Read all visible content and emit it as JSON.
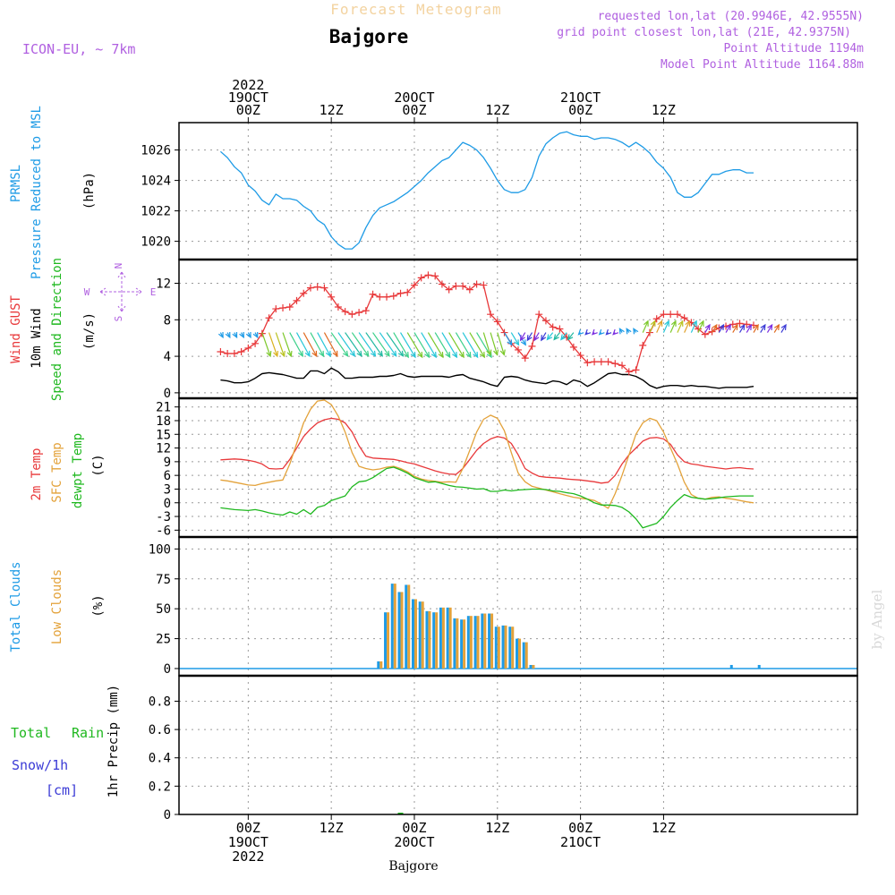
{
  "header": {
    "title": "Forecast Meteogram",
    "location": "Bajgore",
    "model": "ICON-EU, ~ 7km",
    "requested": "requested lon,lat (20.9946E, 42.9555N)",
    "grid_point": "grid point closest lon,lat (21E, 42.9375N)",
    "point_altitude": "Point Altitude 1194m",
    "model_altitude": "Model Point Altitude 1164.88m",
    "watermark": "by Angel",
    "footer_location": "Bajgore"
  },
  "time_axis": {
    "hours_range": [
      -10,
      88
    ],
    "top_labels": [
      {
        "h": 0,
        "lines": [
          "2022",
          "19OCT",
          "00Z"
        ]
      },
      {
        "h": 12,
        "lines": [
          "12Z"
        ]
      },
      {
        "h": 24,
        "lines": [
          "20OCT",
          "00Z"
        ]
      },
      {
        "h": 36,
        "lines": [
          "12Z"
        ]
      },
      {
        "h": 48,
        "lines": [
          "21OCT",
          "00Z"
        ]
      },
      {
        "h": 60,
        "lines": [
          "12Z"
        ]
      }
    ],
    "bottom_labels": [
      {
        "h": 0,
        "lines": [
          "00Z",
          "19OCT",
          "2022"
        ]
      },
      {
        "h": 12,
        "lines": [
          "12Z"
        ]
      },
      {
        "h": 24,
        "lines": [
          "00Z",
          "20OCT"
        ]
      },
      {
        "h": 36,
        "lines": [
          "12Z"
        ]
      },
      {
        "h": 48,
        "lines": [
          "00Z",
          "21OCT"
        ]
      },
      {
        "h": 60,
        "lines": [
          "12Z"
        ]
      }
    ]
  },
  "panels": {
    "pressure": {
      "labels": [
        {
          "text": "PRMSL",
          "color": "#1e9be6"
        },
        {
          "text": "Pressure Reduced to MSL",
          "color": "#1e9be6"
        },
        {
          "text": "(hPa)",
          "color": "#000000"
        }
      ]
    },
    "wind": {
      "labels": [
        {
          "text": "Wind GUST",
          "color": "#e8383a"
        },
        {
          "text": "10m Wind",
          "color": "#000000"
        },
        {
          "text": "Speed and Direction",
          "color": "#1fb81f"
        },
        {
          "text": "(m/s)",
          "color": "#000000"
        }
      ],
      "compass": {
        "n": "N",
        "s": "S",
        "w": "W",
        "e": "E",
        "color": "#b060e0"
      }
    },
    "temp": {
      "labels": [
        {
          "text": "2m Temp",
          "color": "#e8383a"
        },
        {
          "text": "SFC Temp",
          "color": "#e3a23a"
        },
        {
          "text": "dewpt Temp",
          "color": "#1fb81f"
        },
        {
          "text": "(C)",
          "color": "#000000"
        }
      ]
    },
    "clouds": {
      "labels": [
        {
          "text": "Total Clouds",
          "color": "#1e9be6"
        },
        {
          "text": "Low Clouds",
          "color": "#e3a23a"
        },
        {
          "text": "(%)",
          "color": "#000000"
        }
      ]
    },
    "precip": {
      "labels": [
        {
          "text": "Total",
          "color": "#1fb81f"
        },
        {
          "text": "Rain",
          "color": "#1fb81f"
        },
        {
          "text": "Snow/1h",
          "color": "#3b3bd6"
        },
        {
          "text": "[cm]",
          "color": "#3b3bd6"
        },
        {
          "text": "1hr Precip (mm)",
          "color": "#000000"
        }
      ]
    }
  },
  "chart_data": [
    {
      "type": "line",
      "name": "pressure",
      "ylabel": "(hPa)",
      "ylim": [
        1018.8,
        1027.8
      ],
      "yticks": [
        1020,
        1022,
        1024,
        1026
      ],
      "x_hours": [
        -4,
        -3,
        -2,
        -1,
        0,
        1,
        2,
        3,
        4,
        5,
        6,
        7,
        8,
        9,
        10,
        11,
        12,
        13,
        14,
        15,
        16,
        17,
        18,
        19,
        20,
        21,
        22,
        23,
        24,
        25,
        26,
        27,
        28,
        29,
        30,
        31,
        32,
        33,
        34,
        35,
        36,
        37,
        38,
        39,
        40,
        41,
        42,
        43,
        44,
        45,
        46,
        47,
        48,
        49,
        50,
        51,
        52,
        53,
        54,
        55,
        56,
        57,
        58,
        59,
        60,
        61,
        62,
        63,
        64,
        65,
        66,
        67,
        68,
        69,
        70,
        71,
        72,
        73,
        74,
        75,
        76,
        77
      ],
      "series": [
        {
          "color": "#1e9be6",
          "values": [
            1025.9,
            1025.5,
            1024.9,
            1024.5,
            1023.7,
            1023.3,
            1022.7,
            1022.4,
            1023.1,
            1022.8,
            1022.8,
            1022.7,
            1022.3,
            1022.0,
            1021.4,
            1021.1,
            1020.3,
            1019.8,
            1019.5,
            1019.5,
            1019.9,
            1020.9,
            1021.7,
            1022.2,
            1022.4,
            1022.6,
            1022.9,
            1023.2,
            1023.6,
            1024.0,
            1024.5,
            1024.9,
            1025.3,
            1025.5,
            1026.0,
            1026.5,
            1026.3,
            1026.0,
            1025.5,
            1024.8,
            1024.0,
            1023.4,
            1023.2,
            1023.2,
            1023.4,
            1024.2,
            1025.6,
            1026.4,
            1026.8,
            1027.1,
            1027.2,
            1027.0,
            1026.9,
            1026.9,
            1026.7,
            1026.8,
            1026.8,
            1026.7,
            1026.5,
            1026.2,
            1026.5,
            1026.2,
            1025.8,
            1025.2,
            1024.8,
            1024.2,
            1023.2,
            1022.9,
            1022.9,
            1023.2,
            1023.8,
            1024.4,
            1024.4,
            1024.6,
            1024.7,
            1024.7,
            1024.5,
            1024.5
          ]
        }
      ]
    },
    {
      "type": "line",
      "name": "wind",
      "ylabel": "(m/s)",
      "ylim": [
        -0.6,
        14.6
      ],
      "yticks": [
        0,
        4,
        8,
        12
      ],
      "x_hours": [
        -4,
        -3,
        -2,
        -1,
        0,
        1,
        2,
        3,
        4,
        5,
        6,
        7,
        8,
        9,
        10,
        11,
        12,
        13,
        14,
        15,
        16,
        17,
        18,
        19,
        20,
        21,
        22,
        23,
        24,
        25,
        26,
        27,
        28,
        29,
        30,
        31,
        32,
        33,
        34,
        35,
        36,
        37,
        38,
        39,
        40,
        41,
        42,
        43,
        44,
        45,
        46,
        47,
        48,
        49,
        50,
        51,
        52,
        53,
        54,
        55,
        56,
        57,
        58,
        59,
        60,
        61,
        62,
        63,
        64,
        65,
        66,
        67,
        68,
        69,
        70,
        71,
        72,
        73,
        74,
        75,
        76,
        77
      ],
      "series": [
        {
          "name": "Wind GUST",
          "color": "#e8383a",
          "values": [
            4.5,
            4.3,
            4.3,
            4.5,
            4.9,
            5.4,
            6.5,
            8.2,
            9.2,
            9.3,
            9.4,
            10.1,
            10.9,
            11.5,
            11.6,
            11.5,
            10.5,
            9.4,
            8.9,
            8.6,
            8.8,
            9.0,
            10.8,
            10.5,
            10.5,
            10.6,
            10.9,
            11.0,
            11.8,
            12.6,
            12.9,
            12.8,
            11.9,
            11.3,
            11.7,
            11.7,
            11.3,
            11.9,
            11.8,
            8.6,
            7.8,
            6.6,
            5.4,
            4.7,
            3.8,
            5.1,
            8.6,
            7.9,
            7.2,
            7.0,
            6.1,
            5.0,
            4.1,
            3.3,
            3.4,
            3.4,
            3.4,
            3.2,
            3.0,
            2.3,
            2.5,
            5.2,
            6.6,
            8.1,
            8.6,
            8.6,
            8.6,
            8.2,
            7.7,
            7.0,
            6.4,
            6.7,
            7.1,
            7.3,
            7.5,
            7.6,
            7.5,
            7.4
          ]
        },
        {
          "name": "10m Wind",
          "color": "#000000",
          "values": [
            1.4,
            1.3,
            1.1,
            1.1,
            1.2,
            1.6,
            2.1,
            2.2,
            2.1,
            2.0,
            1.8,
            1.6,
            1.6,
            2.4,
            2.4,
            2.1,
            2.7,
            2.3,
            1.6,
            1.6,
            1.7,
            1.7,
            1.7,
            1.8,
            1.8,
            1.9,
            2.1,
            1.8,
            1.7,
            1.8,
            1.8,
            1.8,
            1.8,
            1.7,
            1.9,
            2.0,
            1.6,
            1.4,
            1.2,
            0.9,
            0.7,
            1.7,
            1.8,
            1.7,
            1.4,
            1.2,
            1.1,
            1.0,
            1.3,
            1.2,
            0.9,
            1.4,
            1.2,
            0.7,
            1.1,
            1.6,
            2.1,
            2.2,
            2.0,
            2.0,
            1.8,
            1.4,
            0.8,
            0.5,
            0.7,
            0.8,
            0.8,
            0.7,
            0.8,
            0.7,
            0.7,
            0.6,
            0.5,
            0.6,
            0.6,
            0.6,
            0.6,
            0.7
          ]
        }
      ],
      "arrows": {
        "y_value": 6.6,
        "every_hours": 1
      }
    },
    {
      "type": "line",
      "name": "temp",
      "ylabel": "(C)",
      "ylim": [
        -7.5,
        22.9
      ],
      "yticks": [
        -6,
        -3,
        0,
        3,
        6,
        9,
        12,
        15,
        18,
        21
      ],
      "x_hours": [
        -4,
        -3,
        -2,
        -1,
        0,
        1,
        2,
        3,
        4,
        5,
        6,
        7,
        8,
        9,
        10,
        11,
        12,
        13,
        14,
        15,
        16,
        17,
        18,
        19,
        20,
        21,
        22,
        23,
        24,
        25,
        26,
        27,
        28,
        29,
        30,
        31,
        32,
        33,
        34,
        35,
        36,
        37,
        38,
        39,
        40,
        41,
        42,
        43,
        44,
        45,
        46,
        47,
        48,
        49,
        50,
        51,
        52,
        53,
        54,
        55,
        56,
        57,
        58,
        59,
        60,
        61,
        62,
        63,
        64,
        65,
        66,
        67,
        68,
        69,
        70,
        71,
        72,
        73,
        74,
        75,
        76,
        77
      ],
      "series": [
        {
          "name": "2m Temp",
          "color": "#e8383a",
          "values": [
            9.4,
            9.5,
            9.6,
            9.5,
            9.3,
            9.0,
            8.5,
            7.5,
            7.4,
            7.5,
            9.5,
            12.0,
            14.5,
            16.2,
            17.5,
            18.2,
            18.5,
            18.3,
            17.5,
            15.5,
            12.5,
            10.2,
            9.8,
            9.7,
            9.6,
            9.5,
            9.2,
            8.8,
            8.5,
            8.0,
            7.5,
            7.0,
            6.6,
            6.3,
            6.2,
            7.5,
            9.5,
            11.5,
            13.0,
            14.0,
            14.5,
            14.2,
            13.0,
            10.5,
            7.5,
            6.5,
            5.8,
            5.6,
            5.5,
            5.4,
            5.2,
            5.1,
            5.0,
            4.8,
            4.6,
            4.3,
            4.5,
            6.0,
            8.5,
            10.5,
            12.0,
            13.5,
            14.2,
            14.3,
            14.0,
            12.8,
            10.5,
            9.0,
            8.5,
            8.3,
            8.0,
            7.8,
            7.6,
            7.4,
            7.6,
            7.7,
            7.5,
            7.4
          ]
        },
        {
          "name": "SFC Temp",
          "color": "#e3a23a",
          "values": [
            5.0,
            4.8,
            4.5,
            4.2,
            3.9,
            3.8,
            4.2,
            4.5,
            4.8,
            5.0,
            8.5,
            13.0,
            17.5,
            20.5,
            22.3,
            22.5,
            21.5,
            19.0,
            15.5,
            11.0,
            8.0,
            7.5,
            7.2,
            7.4,
            7.8,
            8.0,
            7.5,
            6.8,
            5.8,
            5.2,
            4.9,
            4.7,
            4.5,
            4.6,
            4.5,
            7.5,
            11.5,
            15.5,
            18.3,
            19.2,
            18.5,
            15.8,
            11.0,
            6.5,
            4.6,
            3.6,
            3.2,
            2.8,
            2.4,
            2.0,
            1.6,
            1.2,
            1.0,
            0.8,
            0.5,
            -0.3,
            -1.2,
            2.0,
            6.0,
            10.5,
            15.0,
            17.5,
            18.5,
            18.0,
            15.5,
            12.0,
            8.5,
            4.5,
            1.8,
            1.0,
            0.8,
            1.2,
            1.3,
            1.0,
            0.8,
            0.5,
            0.2,
            0.0
          ]
        },
        {
          "name": "dewpt Temp",
          "color": "#1fb81f",
          "values": [
            -1.1,
            -1.3,
            -1.5,
            -1.6,
            -1.7,
            -1.5,
            -1.8,
            -2.2,
            -2.5,
            -2.7,
            -2.0,
            -2.5,
            -1.5,
            -2.5,
            -1.0,
            -0.6,
            0.5,
            1.0,
            1.5,
            3.5,
            4.6,
            4.8,
            5.5,
            6.5,
            7.5,
            7.8,
            7.2,
            6.5,
            5.5,
            5.0,
            4.5,
            4.6,
            4.2,
            3.8,
            3.5,
            3.4,
            3.2,
            3.0,
            3.1,
            2.5,
            2.5,
            2.8,
            2.6,
            2.8,
            2.9,
            3.0,
            3.0,
            2.9,
            2.6,
            2.5,
            2.2,
            2.0,
            1.5,
            0.8,
            0.0,
            -0.5,
            -0.5,
            -0.6,
            -1.0,
            -2.0,
            -3.5,
            -5.5,
            -5.0,
            -4.5,
            -3.0,
            -1.0,
            0.5,
            1.8,
            1.2,
            1.0,
            0.8,
            0.9,
            1.1,
            1.3,
            1.4,
            1.5,
            1.5,
            1.5
          ]
        }
      ]
    },
    {
      "type": "bar",
      "name": "clouds",
      "ylabel": "(%)",
      "ylim": [
        -6,
        110
      ],
      "yticks": [
        0,
        25,
        50,
        75,
        100
      ],
      "x_hours": [
        19,
        20,
        21,
        22,
        23,
        24,
        25,
        26,
        27,
        28,
        29,
        30,
        31,
        32,
        33,
        34,
        35,
        36,
        37,
        38,
        39,
        40,
        41,
        42,
        70,
        74
      ],
      "series": [
        {
          "name": "Total Clouds",
          "color": "#1e9be6",
          "values": [
            6,
            47,
            71,
            64,
            70,
            58,
            56,
            48,
            47,
            51,
            51,
            42,
            41,
            44,
            44,
            46,
            46,
            35,
            36,
            35,
            25,
            22,
            3,
            0,
            3,
            3
          ]
        },
        {
          "name": "Low Clouds",
          "color": "#e3a23a",
          "values": [
            6,
            47,
            71,
            64,
            70,
            58,
            56,
            48,
            47,
            51,
            51,
            42,
            41,
            44,
            44,
            46,
            46,
            35,
            36,
            35,
            25,
            22,
            3,
            0,
            0,
            0
          ]
        }
      ]
    },
    {
      "type": "bar",
      "name": "precip",
      "ylabel": "1hr Precip (mm)",
      "ylim": [
        0,
        0.98
      ],
      "yticks": [
        0,
        0.2,
        0.4,
        0.6,
        0.8
      ],
      "x_hours": [
        22
      ],
      "series": [
        {
          "name": "Total",
          "color": "#1fb81f",
          "values": [
            0.005
          ]
        }
      ]
    }
  ]
}
